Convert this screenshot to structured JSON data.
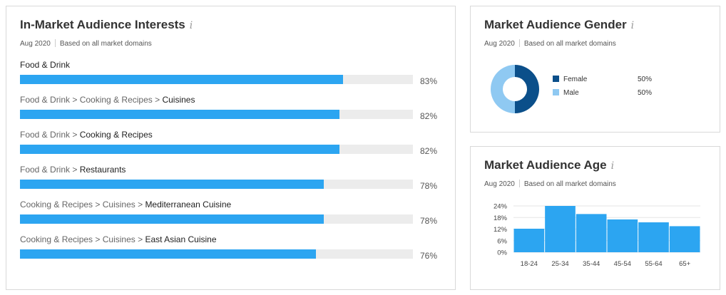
{
  "interests": {
    "title": "In-Market Audience Interests",
    "info": "i",
    "date": "Aug 2020",
    "basis": "Based on all market domains",
    "rows": [
      {
        "path": "",
        "leaf": "Food & Drink",
        "percent": 83,
        "label": "83%"
      },
      {
        "path": "Food & Drink > Cooking & Recipes > ",
        "leaf": "Cuisines",
        "percent": 82,
        "label": "82%"
      },
      {
        "path": "Food & Drink > ",
        "leaf": "Cooking & Recipes",
        "percent": 82,
        "label": "82%"
      },
      {
        "path": "Food & Drink > ",
        "leaf": "Restaurants",
        "percent": 78,
        "label": "78%"
      },
      {
        "path": "Cooking & Recipes > Cuisines > ",
        "leaf": "Mediterranean Cuisine",
        "percent": 78,
        "label": "78%"
      },
      {
        "path": "Cooking & Recipes > Cuisines > ",
        "leaf": "East Asian Cuisine",
        "percent": 76,
        "label": "76%"
      }
    ]
  },
  "gender": {
    "title": "Market Audience Gender",
    "info": "i",
    "date": "Aug 2020",
    "basis": "Based on all market domains",
    "legend": [
      {
        "name": "Female",
        "label": "50%",
        "value": 50,
        "color": "#0b4f8a"
      },
      {
        "name": "Male",
        "label": "50%",
        "value": 50,
        "color": "#8fc9f2"
      }
    ]
  },
  "age": {
    "title": "Market Audience Age",
    "info": "i",
    "date": "Aug 2020",
    "basis": "Based on all market domains"
  },
  "chart_data": {
    "type": "bar",
    "categories": [
      "18-24",
      "25-34",
      "35-44",
      "45-54",
      "55-64",
      "65+"
    ],
    "values": [
      12.2,
      24.0,
      19.8,
      17.0,
      15.5,
      13.5
    ],
    "ylim": [
      0,
      24
    ],
    "yticks": [
      "0%",
      "6%",
      "12%",
      "18%",
      "24%"
    ],
    "ytick_values": [
      0,
      6,
      12,
      18,
      24
    ],
    "color": "#2ca5f1",
    "grid": true
  }
}
